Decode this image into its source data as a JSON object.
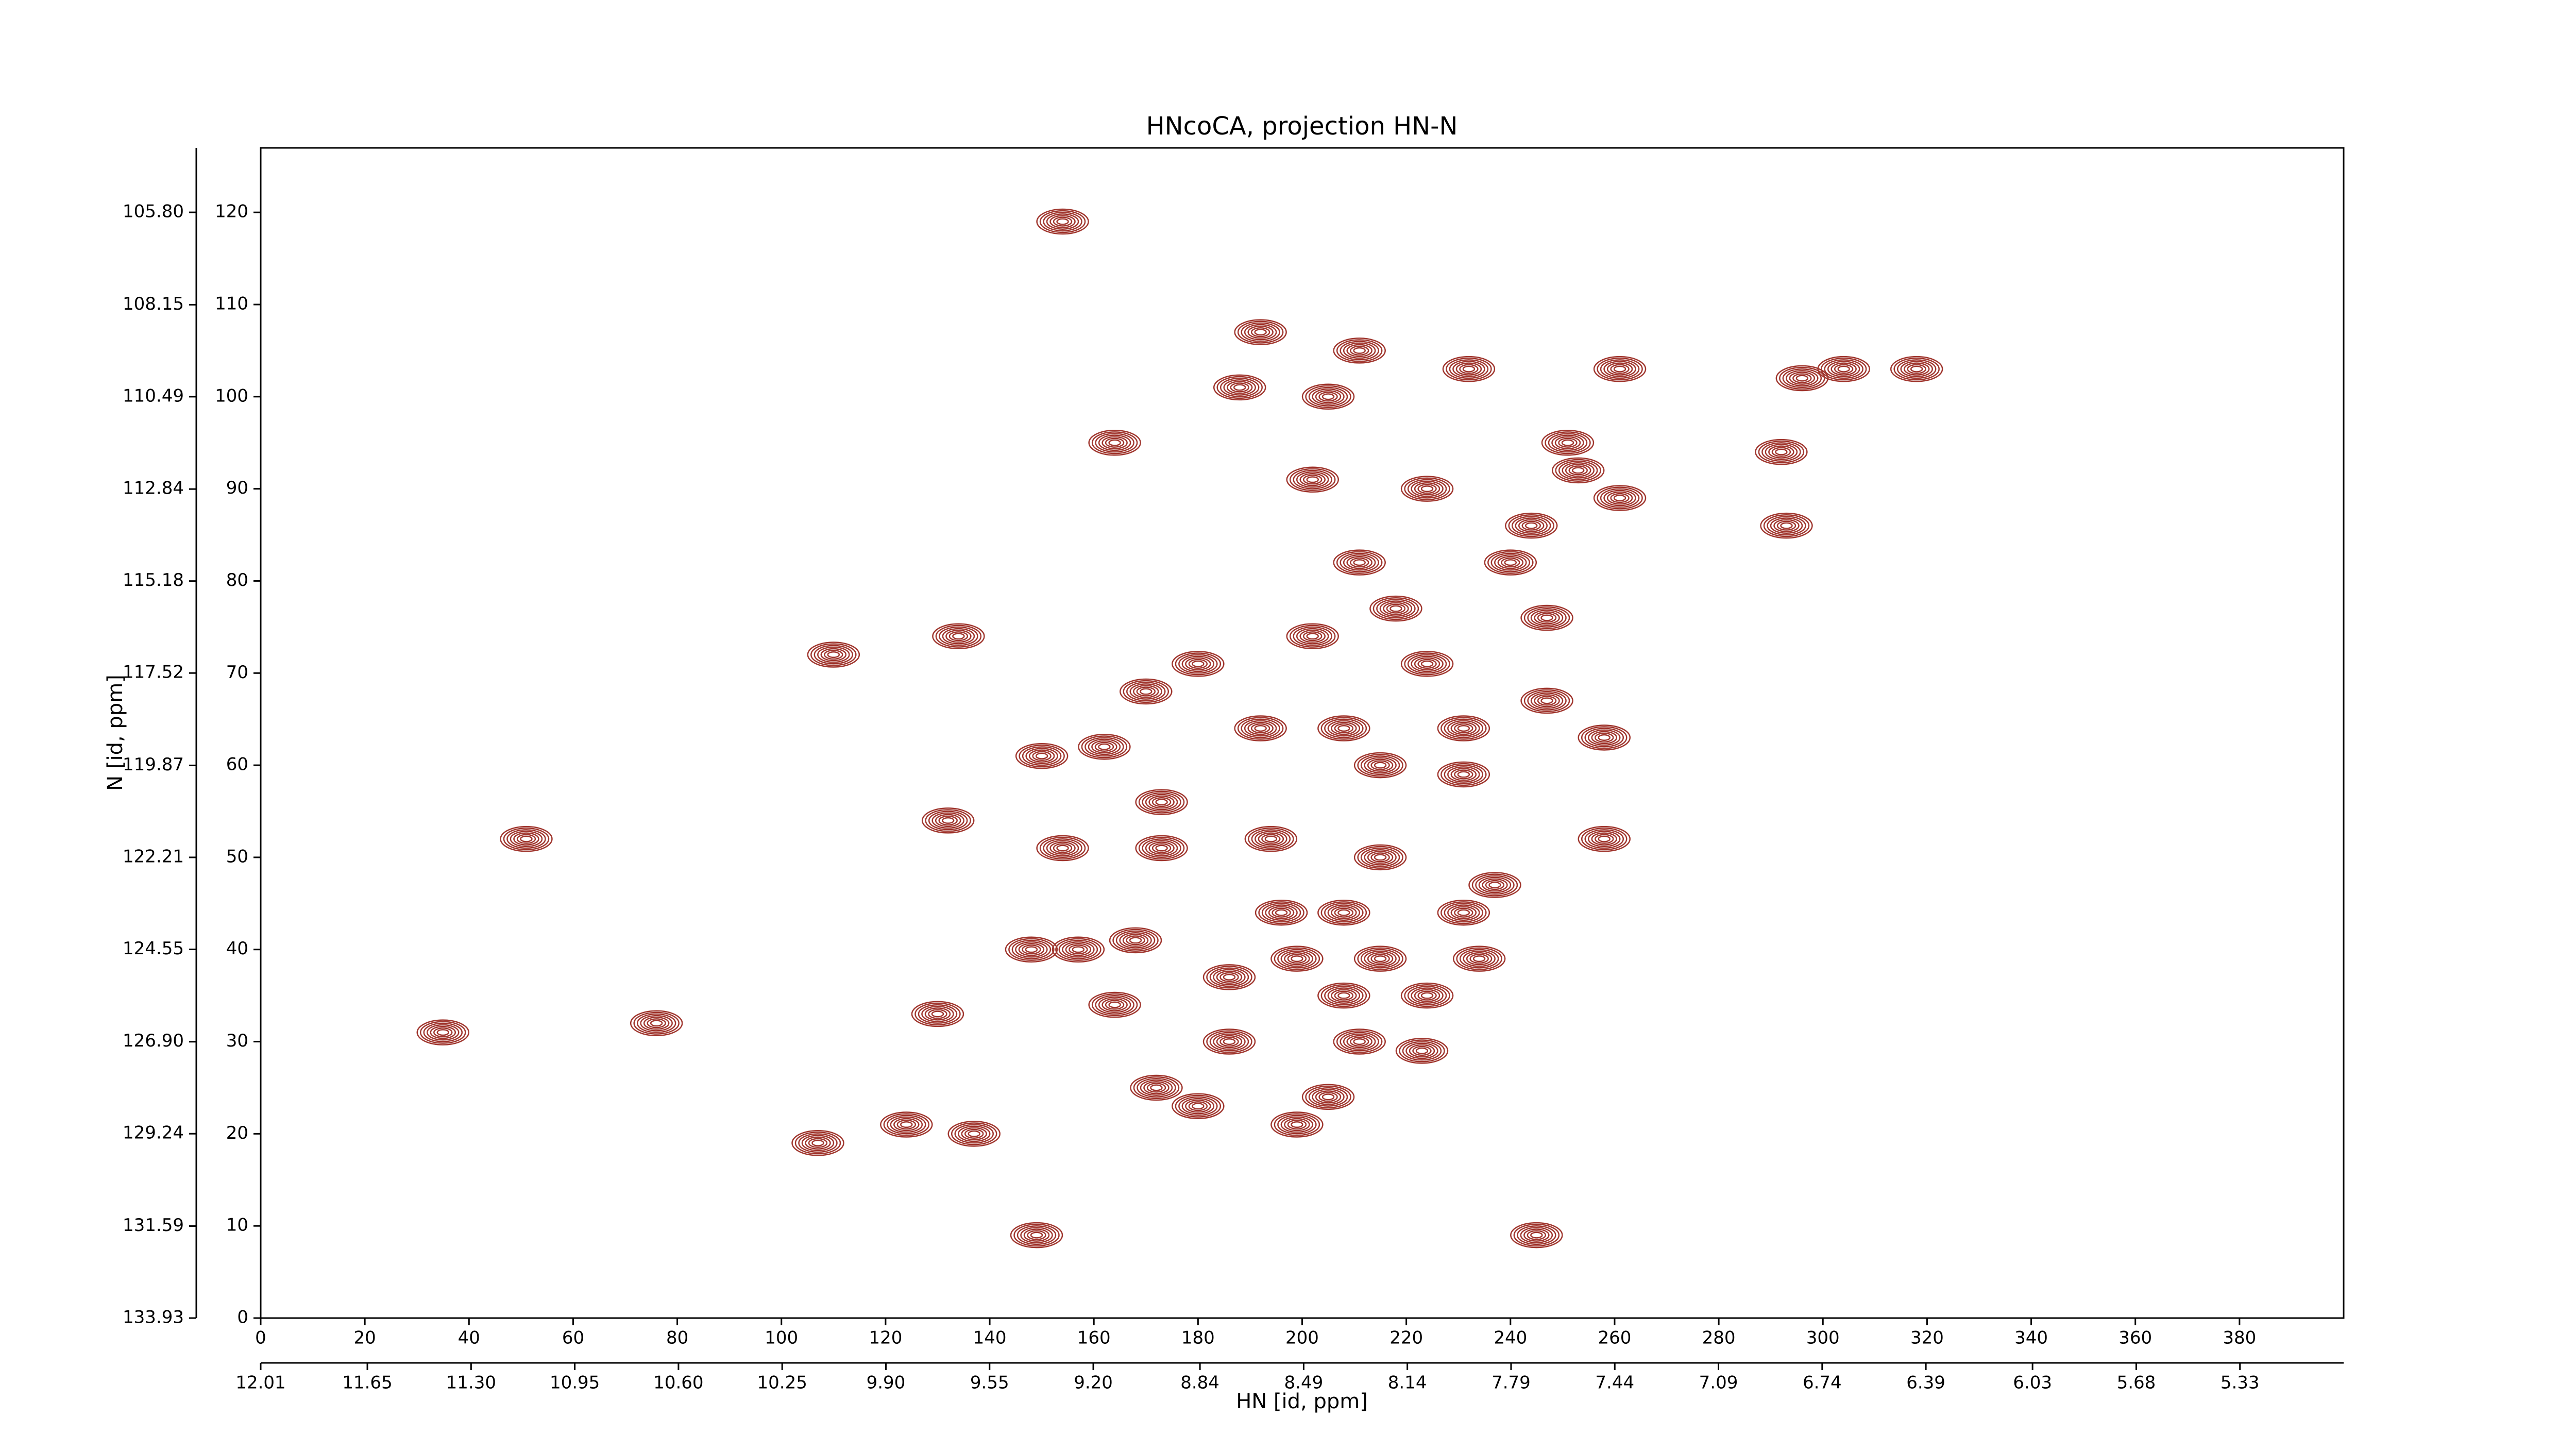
{
  "chart_data": {
    "type": "contour",
    "title": "HNcoCA, projection HN-N",
    "x_label": "HN [id, ppm]",
    "y_label": "N [id, ppm]",
    "color": "#a0362e",
    "x": [
      154,
      192,
      211,
      232,
      261,
      296,
      304,
      318,
      188,
      205,
      164,
      251,
      253,
      202,
      224,
      292,
      293,
      244,
      261,
      211,
      240,
      202,
      218,
      247,
      134,
      110,
      180,
      170,
      224,
      247,
      192,
      208,
      231,
      258,
      150,
      162,
      215,
      231,
      173,
      132,
      51,
      154,
      173,
      194,
      215,
      258,
      237,
      196,
      208,
      231,
      148,
      157,
      168,
      199,
      215,
      234,
      186,
      208,
      224,
      130,
      164,
      76,
      35,
      186,
      211,
      223,
      172,
      180,
      205,
      199,
      124,
      137,
      107,
      149,
      245
    ],
    "y": [
      119,
      107,
      105,
      103,
      103,
      102,
      103,
      103,
      101,
      100,
      95,
      95,
      92,
      91,
      90,
      94,
      86,
      86,
      89,
      82,
      82,
      74,
      77,
      76,
      74,
      72,
      71,
      68,
      71,
      67,
      64,
      64,
      64,
      63,
      61,
      62,
      60,
      59,
      56,
      54,
      52,
      51,
      51,
      52,
      50,
      52,
      47,
      44,
      44,
      44,
      40,
      40,
      41,
      39,
      39,
      39,
      37,
      35,
      35,
      33,
      34,
      32,
      31,
      30,
      30,
      29,
      25,
      23,
      24,
      21,
      21,
      20,
      19,
      9,
      9
    ],
    "xlim": [
      0,
      400
    ],
    "ylim": [
      0,
      127
    ],
    "xticks": [
      0,
      20,
      40,
      60,
      80,
      100,
      120,
      140,
      160,
      180,
      200,
      220,
      240,
      260,
      280,
      300,
      320,
      340,
      360,
      380
    ],
    "yticks": [
      0,
      10,
      20,
      30,
      40,
      50,
      60,
      70,
      80,
      90,
      100,
      110,
      120
    ],
    "x2lim": [
      12.01,
      4.98
    ],
    "x2ticks": [
      12.01,
      11.65,
      {
        "value": 11.3,
        "label": "11.30"
      },
      10.95,
      {
        "value": 10.6,
        "label": "10.60"
      },
      10.25,
      {
        "value": 9.9,
        "label": "9.90"
      },
      9.55,
      {
        "value": 9.2,
        "label": "9.20"
      },
      8.84,
      8.49,
      8.14,
      7.79,
      7.44,
      7.09,
      6.74,
      6.39,
      6.03,
      5.68,
      5.33
    ],
    "y2lim": [
      133.93,
      104.16
    ],
    "y2ticks": [
      133.93,
      131.59,
      129.24,
      {
        "value": 126.9,
        "label": "126.90"
      },
      124.55,
      122.21,
      119.87,
      117.52,
      115.18,
      112.84,
      110.49,
      108.15,
      {
        "value": 105.8,
        "label": "105.80"
      }
    ]
  }
}
